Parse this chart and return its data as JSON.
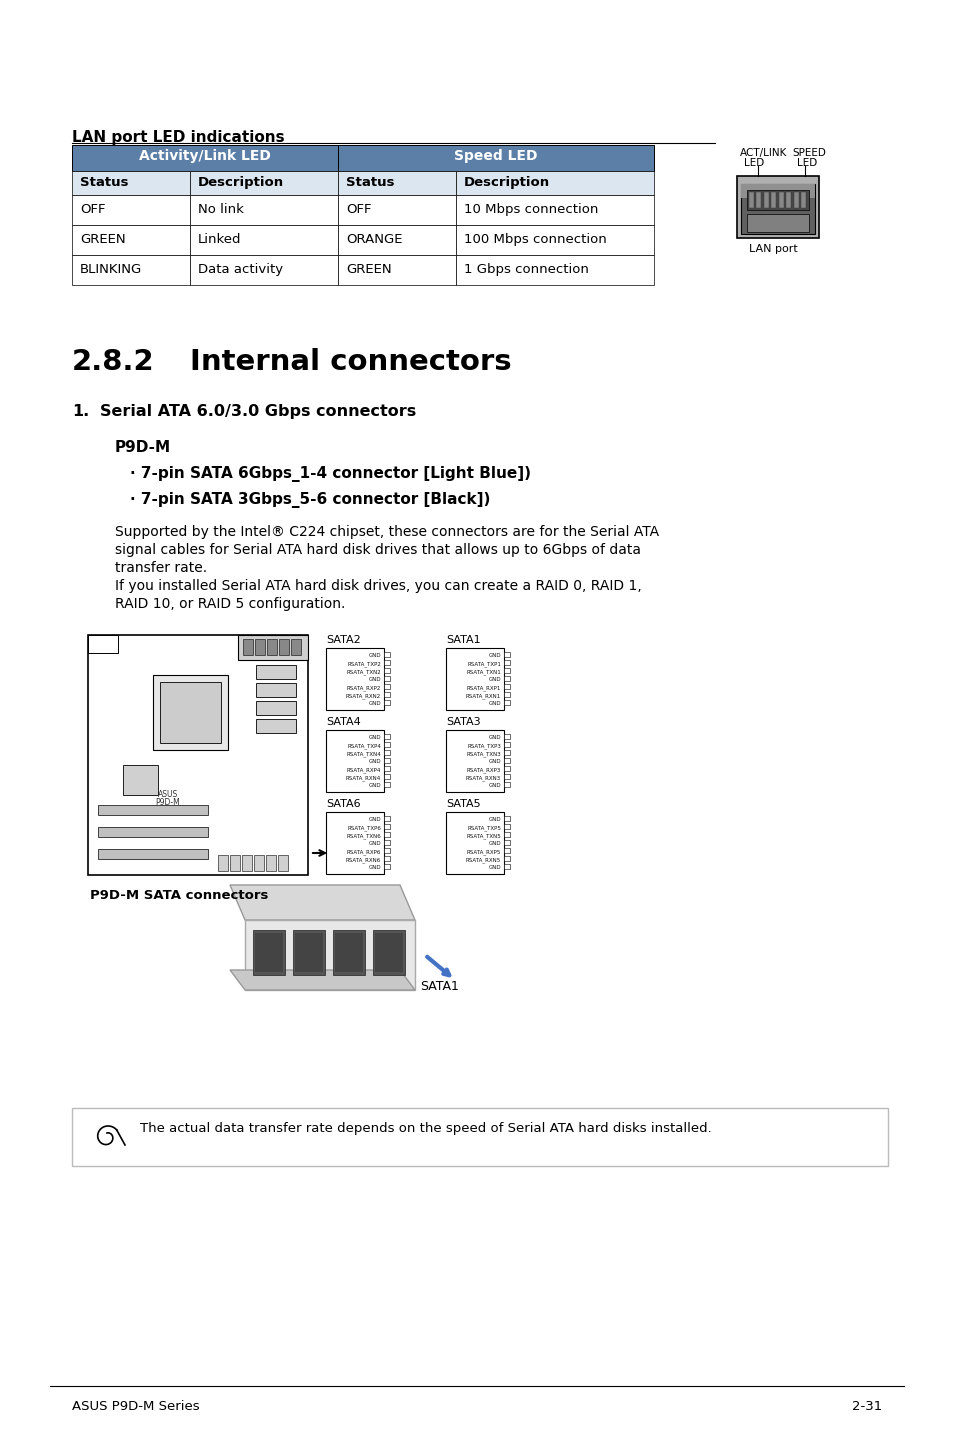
{
  "bg_color": "#ffffff",
  "title_lan": "LAN port LED indications",
  "table_header_bg": "#5b7fa6",
  "table_header_text": "#ffffff",
  "table_subheader_bg": "#dce6f0",
  "table_row_bg1": "#ffffff",
  "table_row_bg2": "#ffffff",
  "table_subcols": [
    "Status",
    "Description",
    "Status",
    "Description"
  ],
  "table_rows": [
    [
      "OFF",
      "No link",
      "OFF",
      "10 Mbps connection"
    ],
    [
      "GREEN",
      "Linked",
      "ORANGE",
      "100 Mbps connection"
    ],
    [
      "BLINKING",
      "Data activity",
      "GREEN",
      "1 Gbps connection"
    ]
  ],
  "lan_port_label": "LAN port",
  "section_number": "2.8.2",
  "section_title": "Internal connectors",
  "item1_number": "1.",
  "item1_title": "Serial ATA 6.0/3.0 Gbps connectors",
  "p9dm_label": "P9D-M",
  "bullet1": "· 7-pin SATA 6Gbps_1-4 connector [Light Blue])",
  "bullet2": "· 7-pin SATA 3Gbps_5-6 connector [Black])",
  "para1a": "Supported by the Intel® C224 chipset, these connectors are for the Serial ATA",
  "para1b": "signal cables for Serial ATA hard disk drives that allows up to 6Gbps of data",
  "para1c": "transfer rate.",
  "para1d": "If you installed Serial ATA hard disk drives, you can create a RAID 0, RAID 1,",
  "para1e": "RAID 10, or RAID 5 configuration.",
  "sata_labels": [
    "SATA2",
    "SATA1",
    "SATA4",
    "SATA3",
    "SATA6",
    "SATA5"
  ],
  "p9dm_sata_label": "P9D-M SATA connectors",
  "sata1_label": "SATA1",
  "note_text": "The actual data transfer rate depends on the speed of Serial ATA hard disks installed.",
  "footer_left": "ASUS P9D-M Series",
  "footer_right": "2-31"
}
